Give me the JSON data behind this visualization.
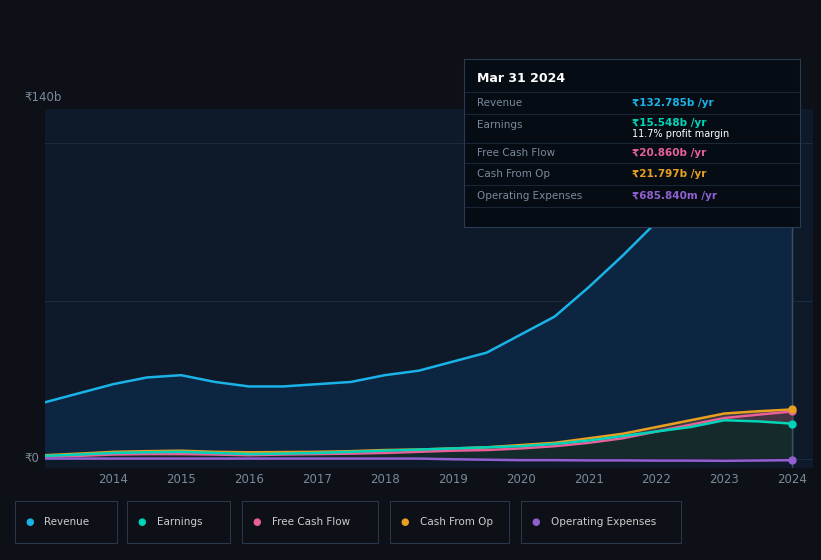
{
  "background_color": "#0d1117",
  "plot_bg_color": "#0e1929",
  "years": [
    2013.0,
    2013.5,
    2014.0,
    2014.5,
    2015.0,
    2015.5,
    2016.0,
    2016.5,
    2017.0,
    2017.5,
    2018.0,
    2018.5,
    2019.0,
    2019.5,
    2020.0,
    2020.5,
    2021.0,
    2021.5,
    2022.0,
    2022.5,
    2023.0,
    2023.5,
    2024.0
  ],
  "revenue": [
    25,
    29,
    33,
    36,
    37,
    34,
    32,
    32,
    33,
    34,
    37,
    39,
    43,
    47,
    55,
    63,
    76,
    90,
    105,
    122,
    145,
    140,
    133
  ],
  "earnings": [
    1.2,
    1.8,
    2.5,
    2.8,
    3.0,
    2.5,
    2.0,
    2.2,
    2.5,
    3.0,
    3.5,
    4.0,
    4.5,
    5.0,
    5.5,
    6.5,
    8.0,
    10.0,
    12.0,
    14.0,
    17.0,
    16.5,
    15.5
  ],
  "free_cash_flow": [
    0.8,
    1.2,
    1.8,
    2.0,
    2.0,
    1.8,
    1.5,
    1.8,
    2.0,
    2.2,
    2.5,
    3.0,
    3.5,
    3.8,
    4.5,
    5.5,
    7.0,
    9.0,
    12.0,
    15.0,
    18.0,
    19.5,
    20.9
  ],
  "cash_from_op": [
    1.5,
    2.2,
    3.0,
    3.3,
    3.5,
    3.0,
    2.8,
    2.9,
    3.0,
    3.3,
    3.8,
    4.0,
    4.5,
    5.0,
    6.0,
    7.0,
    9.0,
    11.0,
    14.0,
    17.0,
    20.0,
    21.0,
    21.8
  ],
  "operating_expenses": [
    0.0,
    0.0,
    0.0,
    0.0,
    0.0,
    0.0,
    0.0,
    0.0,
    0.0,
    0.0,
    0.0,
    0.0,
    -0.3,
    -0.5,
    -0.7,
    -0.7,
    -0.8,
    -0.8,
    -0.9,
    -0.9,
    -1.0,
    -0.85,
    -0.7
  ],
  "revenue_color": "#1ab3e8",
  "earnings_color": "#00d4b8",
  "fcf_color": "#e8609a",
  "cfop_color": "#e8a020",
  "opex_color": "#9060d0",
  "revenue_fill": "#0d2a45",
  "y_label": "₹140b",
  "y_zero_label": "₹0",
  "x_ticks": [
    2014,
    2015,
    2016,
    2017,
    2018,
    2019,
    2020,
    2021,
    2022,
    2023,
    2024
  ],
  "tooltip_title": "Mar 31 2024",
  "tooltip_revenue_label": "Revenue",
  "tooltip_revenue_val": "₹132.785b /yr",
  "tooltip_earnings_label": "Earnings",
  "tooltip_earnings_val": "₹15.548b /yr",
  "tooltip_margin": "11.7% profit margin",
  "tooltip_fcf_label": "Free Cash Flow",
  "tooltip_fcf_val": "₹20.860b /yr",
  "tooltip_cfop_label": "Cash From Op",
  "tooltip_cfop_val": "₹21.797b /yr",
  "tooltip_opex_label": "Operating Expenses",
  "tooltip_opex_val": "₹685.840m /yr",
  "legend_labels": [
    "Revenue",
    "Earnings",
    "Free Cash Flow",
    "Cash From Op",
    "Operating Expenses"
  ],
  "grid_color": "#1e2d3d",
  "text_dim": "#7a8a9a",
  "text_bright": "#cccccc"
}
